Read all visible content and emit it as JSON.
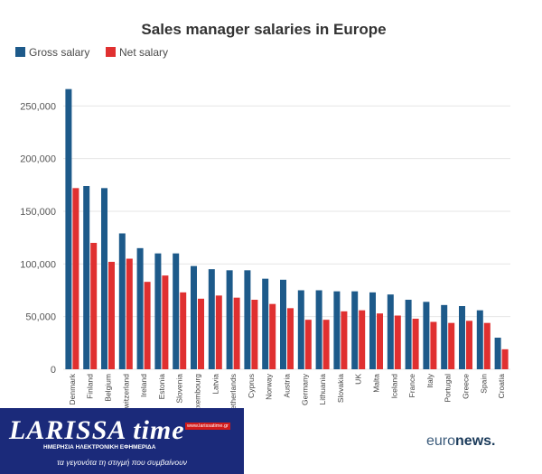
{
  "colors": {
    "gross": "#1d5a8a",
    "net": "#e03030",
    "grid": "#e6e6e6"
  },
  "watermark": {
    "logo": "LARISSA time",
    "subtitle": "ΗΜΕΡΗΣΙΑ ΗΛΕΚΤΡΟΝΙΚΗ ΕΦΗΜΕΡΙΔΑ",
    "url": "www.larissatime.gr",
    "tagline": "τα γεγονότα τη στιγμή που συμβαίνουν"
  },
  "brand": {
    "part1": "euro",
    "part2": "news."
  },
  "chart_data": {
    "type": "bar",
    "title": "Sales manager salaries in Europe",
    "legend_position": "top-left",
    "grid": true,
    "ylim": [
      0,
      270000
    ],
    "yticks": [
      0,
      50000,
      100000,
      150000,
      200000,
      250000
    ],
    "ytick_labels": [
      "0",
      "50,000",
      "100,000",
      "150,000",
      "200,000",
      "250,000"
    ],
    "categories": [
      "Denmark",
      "Finland",
      "Belgium",
      "Switzerland",
      "Ireland",
      "Estonia",
      "Slovenia",
      "Luxembourg",
      "Latvia",
      "Netherlands",
      "Cyprus",
      "Norway",
      "Austria",
      "Germany",
      "Lithuania",
      "Slovakia",
      "UK",
      "Malta",
      "Iceland",
      "France",
      "Italy",
      "Portugal",
      "Greece",
      "Spain",
      "Croatia"
    ],
    "series": [
      {
        "name": "Gross salary",
        "values": [
          266000,
          174000,
          172000,
          129000,
          115000,
          110000,
          110000,
          98000,
          95000,
          94000,
          94000,
          86000,
          85000,
          75000,
          75000,
          74000,
          74000,
          73000,
          71000,
          66000,
          64000,
          61000,
          60000,
          56000,
          30000
        ]
      },
      {
        "name": "Net salary",
        "values": [
          172000,
          120000,
          102000,
          105000,
          83000,
          89000,
          73000,
          67000,
          70000,
          68000,
          66000,
          62000,
          58000,
          47000,
          47000,
          55000,
          56000,
          53000,
          51000,
          48000,
          45000,
          44000,
          46000,
          44000,
          19000
        ]
      }
    ]
  }
}
